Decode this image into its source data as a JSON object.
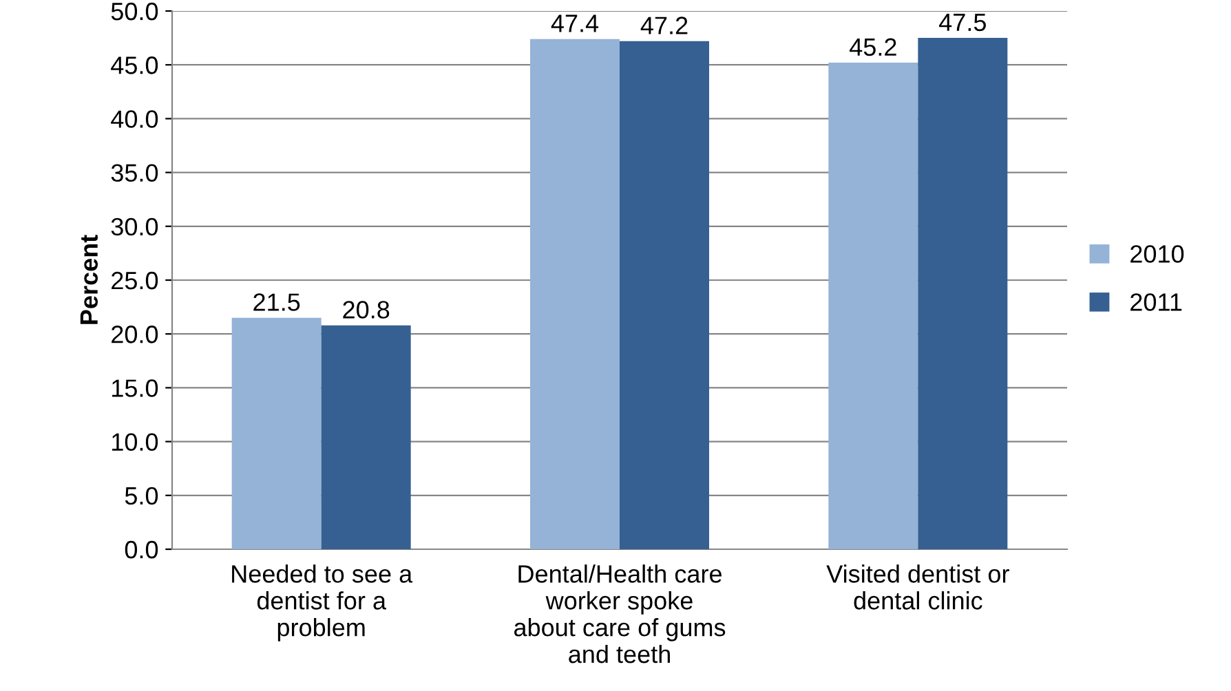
{
  "chart_data": {
    "type": "bar",
    "ylabel": "Percent",
    "categories": [
      "Needed to see a\ndentist for a\nproblem",
      "Dental/Health care\nworker spoke\nabout care of gums\nand teeth",
      "Visited dentist or\ndental clinic"
    ],
    "series": [
      {
        "name": "2010",
        "color": "#95b3d7",
        "values": [
          21.5,
          47.4,
          45.2
        ]
      },
      {
        "name": "2011",
        "color": "#366092",
        "values": [
          20.8,
          47.2,
          47.5
        ]
      }
    ],
    "ylim": [
      0,
      50
    ],
    "yticks": [
      {
        "value": 0,
        "label": "0.0"
      },
      {
        "value": 5,
        "label": "5.0"
      },
      {
        "value": 10,
        "label": "10.0"
      },
      {
        "value": 15,
        "label": "15.0"
      },
      {
        "value": 20,
        "label": "20.0"
      },
      {
        "value": 25,
        "label": "25.0"
      },
      {
        "value": 30,
        "label": "30.0"
      },
      {
        "value": 35,
        "label": "35.0"
      },
      {
        "value": 40,
        "label": "40.0"
      },
      {
        "value": 45,
        "label": "45.0"
      },
      {
        "value": 50,
        "label": "50.0"
      }
    ],
    "grid": "y",
    "legend": "right",
    "data_labels": true
  }
}
